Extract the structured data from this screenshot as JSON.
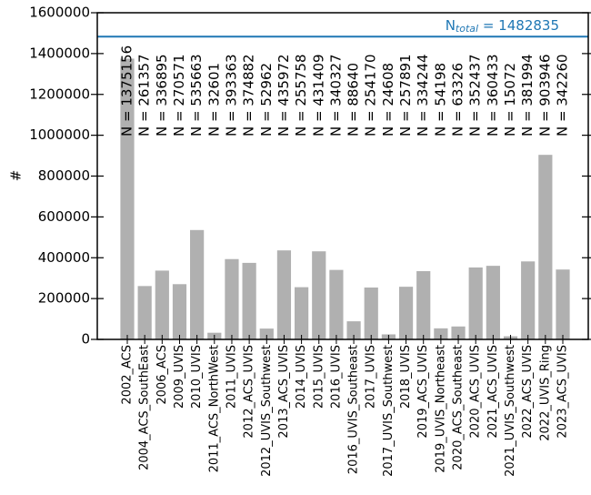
{
  "chart_data": {
    "type": "bar",
    "ylabel": "#",
    "categories": [
      "2002_ACS",
      "2004_ACS_SouthEast",
      "2006_ACS",
      "2009_UVIS",
      "2010_UVIS",
      "2011_ACS_NorthWest",
      "2011_UVIS",
      "2012_ACS_UVIS",
      "2012_UVIS_Southwest",
      "2013_ACS_UVIS",
      "2014_UVIS",
      "2015_UVIS",
      "2016_UVIS",
      "2016_UVIS_Southeast",
      "2017_UVIS",
      "2017_UVIS_Southwest",
      "2018_UVIS",
      "2019_ACS_UVIS",
      "2019_UVIS_Northeast",
      "2020_ACS_Southeast",
      "2020_ACS_UVIS",
      "2021_ACS_UVIS",
      "2021_UVIS_Southwest",
      "2022_ACS_UVIS",
      "2022_UVIS_Ring",
      "2023_ACS_UVIS"
    ],
    "values": [
      1375156,
      261357,
      336895,
      270571,
      535663,
      32601,
      393363,
      374882,
      52962,
      435972,
      255758,
      431409,
      340327,
      88640,
      254170,
      24608,
      257891,
      334244,
      54198,
      63326,
      352437,
      360433,
      15072,
      381994,
      903946,
      342260
    ],
    "value_labels": [
      "N = 1375156",
      "N = 261357",
      "N = 336895",
      "N = 270571",
      "N = 535663",
      "N = 32601",
      "N = 393363",
      "N = 374882",
      "N = 52962",
      "N = 435972",
      "N = 255758",
      "N = 431409",
      "N = 340327",
      "N = 88640",
      "N = 254170",
      "N = 24608",
      "N = 257891",
      "N = 334244",
      "N = 54198",
      "N = 63326",
      "N = 352437",
      "N = 360433",
      "N = 15072",
      "N = 381994",
      "N = 903946",
      "N = 342260"
    ],
    "color": "#b0b0b0",
    "ylim": [
      0,
      1600000
    ],
    "yticks": [
      0,
      200000,
      400000,
      600000,
      800000,
      1000000,
      1200000,
      1400000,
      1600000
    ],
    "total_line": {
      "value": 1482835,
      "color": "#1f77b4",
      "label": "N",
      "label_sub": "total",
      "label_rest": " = 1482835"
    }
  }
}
